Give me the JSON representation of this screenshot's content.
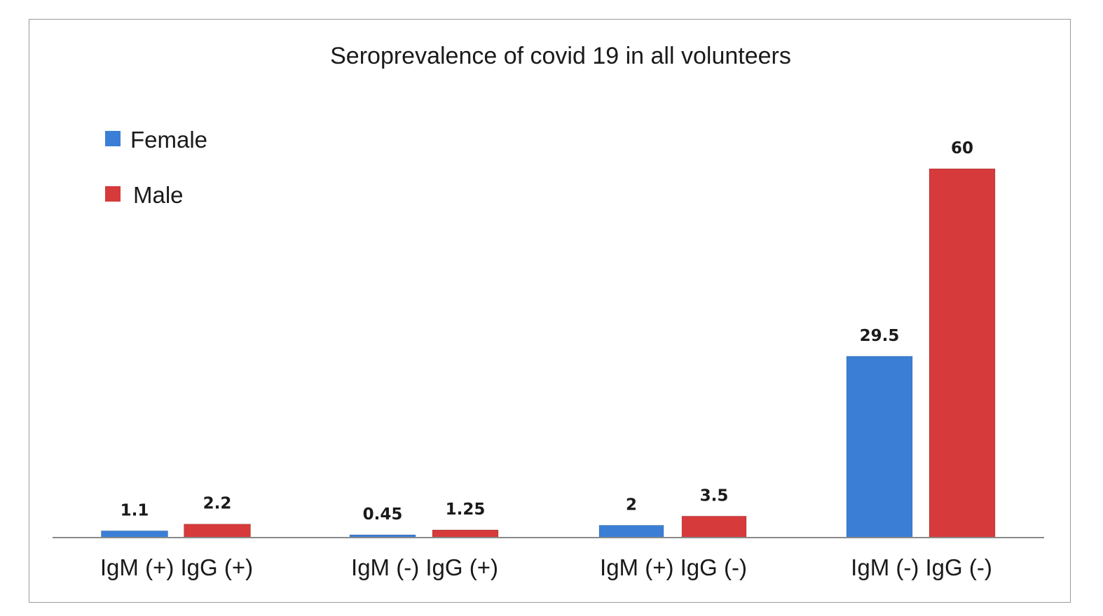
{
  "chart_data": {
    "type": "bar",
    "title": "Seroprevalence of covid 19 in all volunteers",
    "xlabel": "",
    "ylabel": "",
    "categories": [
      "IgM (+) IgG (+)",
      "IgM (-) IgG (+)",
      "IgM (+) IgG (-)",
      "IgM (-) IgG (-)"
    ],
    "series": [
      {
        "name": "Female",
        "color": "#3a7fd5",
        "values": [
          1.1,
          0.45,
          2,
          29.5
        ],
        "labels": [
          "1.1",
          "0.45",
          "2",
          "29.5"
        ]
      },
      {
        "name": "Male",
        "color": "#d63a3a",
        "values": [
          2.2,
          1.25,
          3.5,
          60
        ],
        "labels": [
          "2.2",
          "1.25",
          "3.5",
          "60"
        ]
      }
    ],
    "ylim": [
      0,
      60
    ],
    "grid": false,
    "data_labels": true,
    "legend_position": "top-left",
    "axis_color": "#8a8a8a"
  }
}
